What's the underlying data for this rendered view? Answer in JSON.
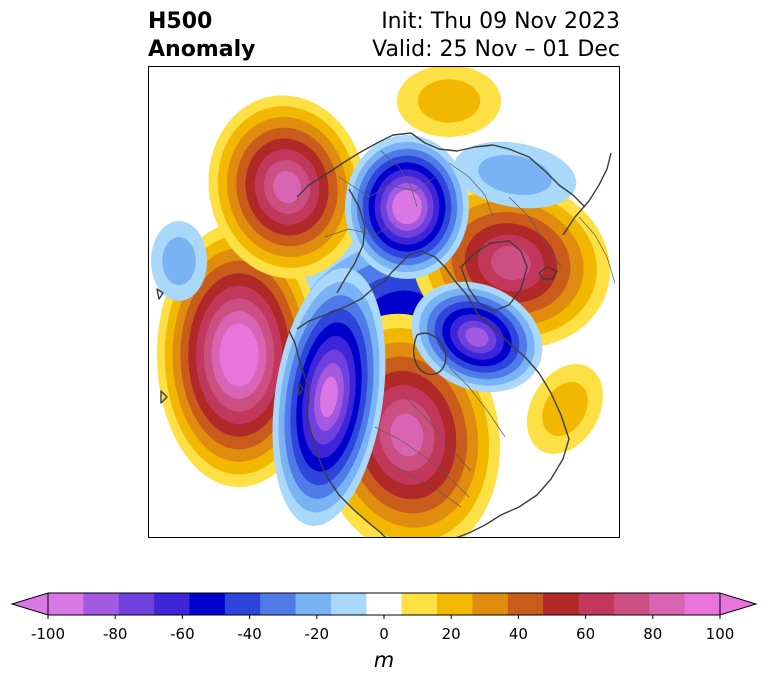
{
  "header": {
    "field": "H500",
    "field_type": "Anomaly",
    "init_label": "Init: Thu 09 Nov 2023",
    "valid_label": "Valid: 25 Nov – 01 Dec"
  },
  "colorbar": {
    "unit": "m",
    "ticks": [
      {
        "value": -100,
        "label": "-100"
      },
      {
        "value": -80,
        "label": "-80"
      },
      {
        "value": -60,
        "label": "-60"
      },
      {
        "value": -40,
        "label": "-40"
      },
      {
        "value": -20,
        "label": "-20"
      },
      {
        "value": 0,
        "label": "0"
      },
      {
        "value": 20,
        "label": "20"
      },
      {
        "value": 40,
        "label": "40"
      },
      {
        "value": 60,
        "label": "60"
      },
      {
        "value": 80,
        "label": "80"
      },
      {
        "value": 100,
        "label": "100"
      }
    ],
    "range": [
      -100,
      100
    ],
    "levels": [
      -100,
      -90,
      -80,
      -70,
      -60,
      -50,
      -40,
      -30,
      -20,
      -10,
      10,
      20,
      30,
      40,
      50,
      60,
      70,
      80,
      90,
      100
    ],
    "colors": [
      "#d977e6",
      "#a35ae0",
      "#7040dd",
      "#3f25d9",
      "#0000cc",
      "#2e45dc",
      "#4f7be8",
      "#7ab3f4",
      "#a9d8fa",
      "#ffffff",
      "#fde043",
      "#f2b700",
      "#e08c0f",
      "#c95c1b",
      "#b02828",
      "#c2385c",
      "#cc4f82",
      "#d964b4",
      "#e874dc"
    ],
    "under_color": "#d977e6",
    "over_color": "#e874dc"
  },
  "anomalies": [
    {
      "sign": "positive",
      "peak": 80
    },
    {
      "sign": "positive",
      "peak": 100
    },
    {
      "sign": "positive",
      "peak": 70
    },
    {
      "sign": "positive",
      "peak": 80
    },
    {
      "sign": "positive",
      "peak": 20
    },
    {
      "sign": "positive",
      "peak": 20
    },
    {
      "sign": "negative",
      "peak": -100
    },
    {
      "sign": "negative",
      "peak": -90
    },
    {
      "sign": "negative",
      "peak": -80
    },
    {
      "sign": "negative",
      "peak": -50
    },
    {
      "sign": "negative",
      "peak": -20
    },
    {
      "sign": "negative",
      "peak": -20
    }
  ]
}
